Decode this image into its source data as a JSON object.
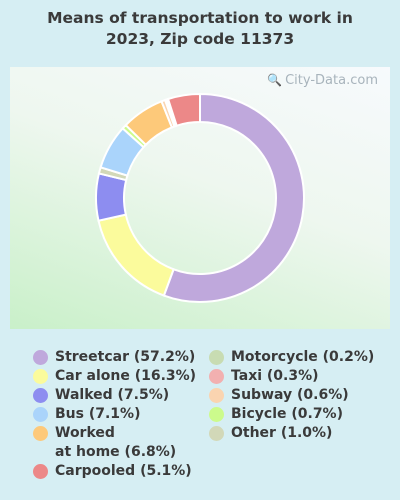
{
  "chart_data": {
    "type": "pie",
    "title_lines": [
      "Means of transportation to work in",
      "2023, Zip code 11373"
    ],
    "donut": true,
    "segments": [
      {
        "label": "Streetcar (57.2%)",
        "value": 57.2,
        "color": "#bfa8dc"
      },
      {
        "label": "Car alone (16.3%)",
        "value": 16.3,
        "color": "#fbfb9c"
      },
      {
        "label": "Walked (7.5%)",
        "value": 7.5,
        "color": "#8d8df0"
      },
      {
        "label": "Bus (7.1%)",
        "value": 7.1,
        "color": "#aad4fb"
      },
      {
        "label_lines": [
          "Worked",
          "at home (6.8%)"
        ],
        "value": 6.8,
        "color": "#fdc97a"
      },
      {
        "label": "Carpooled (5.1%)",
        "value": 5.1,
        "color": "#ec8888"
      },
      {
        "label": "Motorcycle (0.2%)",
        "value": 0.2,
        "color": "#c8dcb2"
      },
      {
        "label": "Taxi (0.3%)",
        "value": 0.3,
        "color": "#f2b0b0"
      },
      {
        "label": "Subway (0.6%)",
        "value": 0.6,
        "color": "#fad4b0"
      },
      {
        "label": "Bicycle (0.7%)",
        "value": 0.7,
        "color": "#ccfb8c"
      },
      {
        "label": "Other (1.0%)",
        "value": 1.0,
        "color": "#d2d8b8"
      }
    ],
    "legend_columns": 2
  },
  "watermark": {
    "text": "City-Data.com"
  }
}
